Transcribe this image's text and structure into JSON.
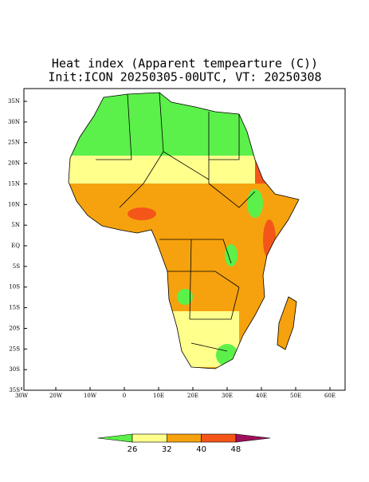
{
  "title": "Heat index (Apparent tempearture (C))",
  "subtitle": "Init:ICON 20250305-00UTC, VT: 20250308",
  "lat_labels": [
    "35N",
    "30N",
    "25N",
    "20N",
    "15N",
    "10N",
    "5N",
    "EQ",
    "5S",
    "10S",
    "15S",
    "20S",
    "25S",
    "30S",
    "35S"
  ],
  "lon_labels": [
    "30W",
    "20W",
    "10W",
    0,
    "10E",
    "20E",
    "30E",
    "40E",
    "50E",
    "60E"
  ],
  "colorbar": {
    "ticks": [
      26,
      32,
      40,
      48
    ],
    "colors": [
      "#5cf04a",
      "#ffff8c",
      "#f5a20e",
      "#f4561a",
      "#a0105a"
    ]
  }
}
